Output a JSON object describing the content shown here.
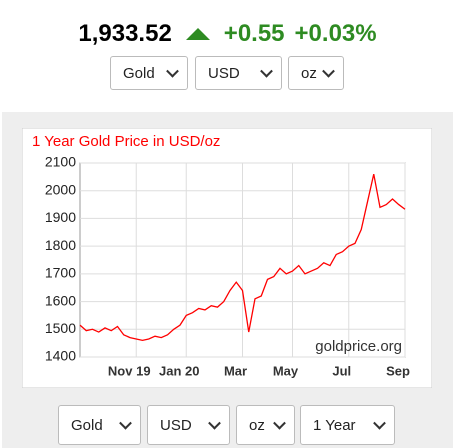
{
  "header": {
    "price": "1,933.52",
    "change": "+0.55",
    "change_percent": "+0.03%"
  },
  "top_controls": [
    "Gold",
    "USD",
    "oz"
  ],
  "bottom_controls": [
    "Gold",
    "USD",
    "oz",
    "1 Year"
  ],
  "chart_data": {
    "type": "line",
    "title": "1 Year Gold Price in USD/oz",
    "annotation": "goldprice.org",
    "categories": [
      null,
      null,
      null,
      null,
      null,
      null,
      null,
      null,
      null,
      "Nov 19",
      null,
      null,
      null,
      null,
      null,
      null,
      null,
      "Jan 20",
      null,
      null,
      null,
      null,
      null,
      null,
      null,
      null,
      "Mar",
      null,
      null,
      null,
      null,
      null,
      null,
      null,
      "May",
      null,
      null,
      null,
      null,
      null,
      null,
      null,
      null,
      "Jul",
      null,
      null,
      null,
      null,
      null,
      null,
      null,
      null,
      "Sep"
    ],
    "series": [
      {
        "color": "#ff0000",
        "values": [
          1515,
          1495,
          1500,
          1490,
          1505,
          1495,
          1510,
          1480,
          1470,
          1465,
          1460,
          1465,
          1475,
          1470,
          1480,
          1500,
          1515,
          1550,
          1560,
          1575,
          1570,
          1585,
          1580,
          1600,
          1640,
          1670,
          1640,
          1490,
          1610,
          1620,
          1680,
          1690,
          1720,
          1700,
          1710,
          1730,
          1700,
          1710,
          1720,
          1740,
          1730,
          1770,
          1780,
          1800,
          1810,
          1860,
          1960,
          2060,
          1940,
          1950,
          1970,
          1950,
          1933
        ]
      }
    ],
    "ylim": [
      1400,
      2100
    ],
    "yticks": [
      1400,
      1500,
      1600,
      1700,
      1800,
      1900,
      2000,
      2100
    ],
    "grid": true
  }
}
